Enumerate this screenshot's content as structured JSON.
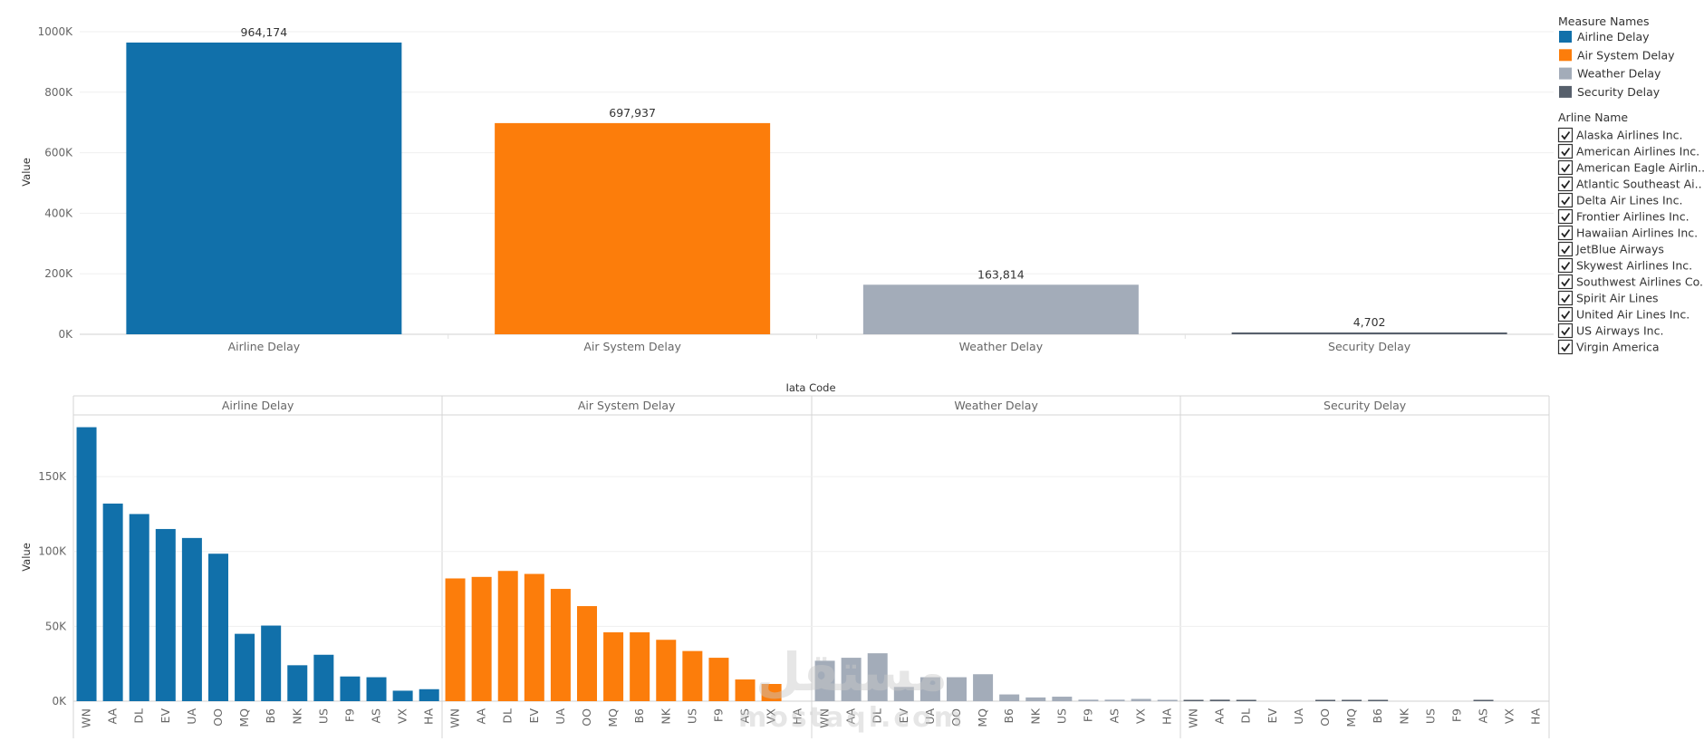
{
  "chart_data": [
    {
      "type": "bar",
      "ylabel": "Value",
      "ylim": [
        0,
        1000000
      ],
      "yticks": [
        "0K",
        "200K",
        "400K",
        "600K",
        "800K",
        "1000K"
      ],
      "categories": [
        "Airline Delay",
        "Air System Delay",
        "Weather Delay",
        "Security Delay"
      ],
      "values": [
        964174,
        697937,
        163814,
        4702
      ],
      "data_labels": [
        "964,174",
        "697,937",
        "163,814",
        "4,702"
      ],
      "colors": [
        "#1170aa",
        "#fc7d0b",
        "#a3acb9",
        "#57606c"
      ],
      "grid": true
    },
    {
      "type": "bar",
      "title": "Iata Code",
      "ylabel": "Value",
      "ylim": [
        0,
        190000
      ],
      "yticks": [
        "0K",
        "50K",
        "100K",
        "150K"
      ],
      "categories": [
        "WN",
        "AA",
        "DL",
        "EV",
        "UA",
        "OO",
        "MQ",
        "B6",
        "NK",
        "US",
        "F9",
        "AS",
        "VX",
        "HA"
      ],
      "panes": [
        {
          "name": "Airline Delay",
          "color": "#1170aa",
          "values": [
            183000,
            132000,
            125000,
            115000,
            109000,
            98500,
            45000,
            50500,
            24000,
            31000,
            16500,
            16000,
            7000,
            8000
          ]
        },
        {
          "name": "Air System Delay",
          "color": "#fc7d0b",
          "values": [
            82000,
            83000,
            87000,
            85000,
            75000,
            63500,
            46000,
            46000,
            41000,
            33500,
            29000,
            14500,
            11500,
            0
          ]
        },
        {
          "name": "Weather Delay",
          "color": "#a3acb9",
          "values": [
            27000,
            29000,
            32000,
            9500,
            16000,
            16000,
            18000,
            4500,
            2500,
            3000,
            1000,
            1000,
            1500,
            300
          ]
        },
        {
          "name": "Security Delay",
          "color": "#57606c",
          "values": [
            300,
            1000,
            400,
            0,
            0,
            300,
            200,
            200,
            0,
            0,
            0,
            500,
            0,
            0
          ]
        }
      ],
      "grid": true
    }
  ],
  "legend": {
    "measure_title": "Measure Names",
    "measures": [
      {
        "label": "Airline Delay",
        "color": "#1170aa"
      },
      {
        "label": "Air System Delay",
        "color": "#fc7d0b"
      },
      {
        "label": "Weather Delay",
        "color": "#a3acb9"
      },
      {
        "label": "Security Delay",
        "color": "#57606c"
      }
    ],
    "filter_title": "Arline Name",
    "airlines": [
      "Alaska Airlines Inc.",
      "American Airlines Inc.",
      "American Eagle Airlin..",
      "Atlantic Southeast Ai..",
      "Delta Air Lines Inc.",
      "Frontier Airlines Inc.",
      "Hawaiian Airlines Inc.",
      "JetBlue Airways",
      "Skywest Airlines Inc.",
      "Southwest Airlines Co.",
      "Spirit Air Lines",
      "United Air Lines Inc.",
      "US Airways Inc.",
      "Virgin America"
    ]
  },
  "watermark": {
    "arabic": "مستقل",
    "latin": "mostaql.com"
  }
}
